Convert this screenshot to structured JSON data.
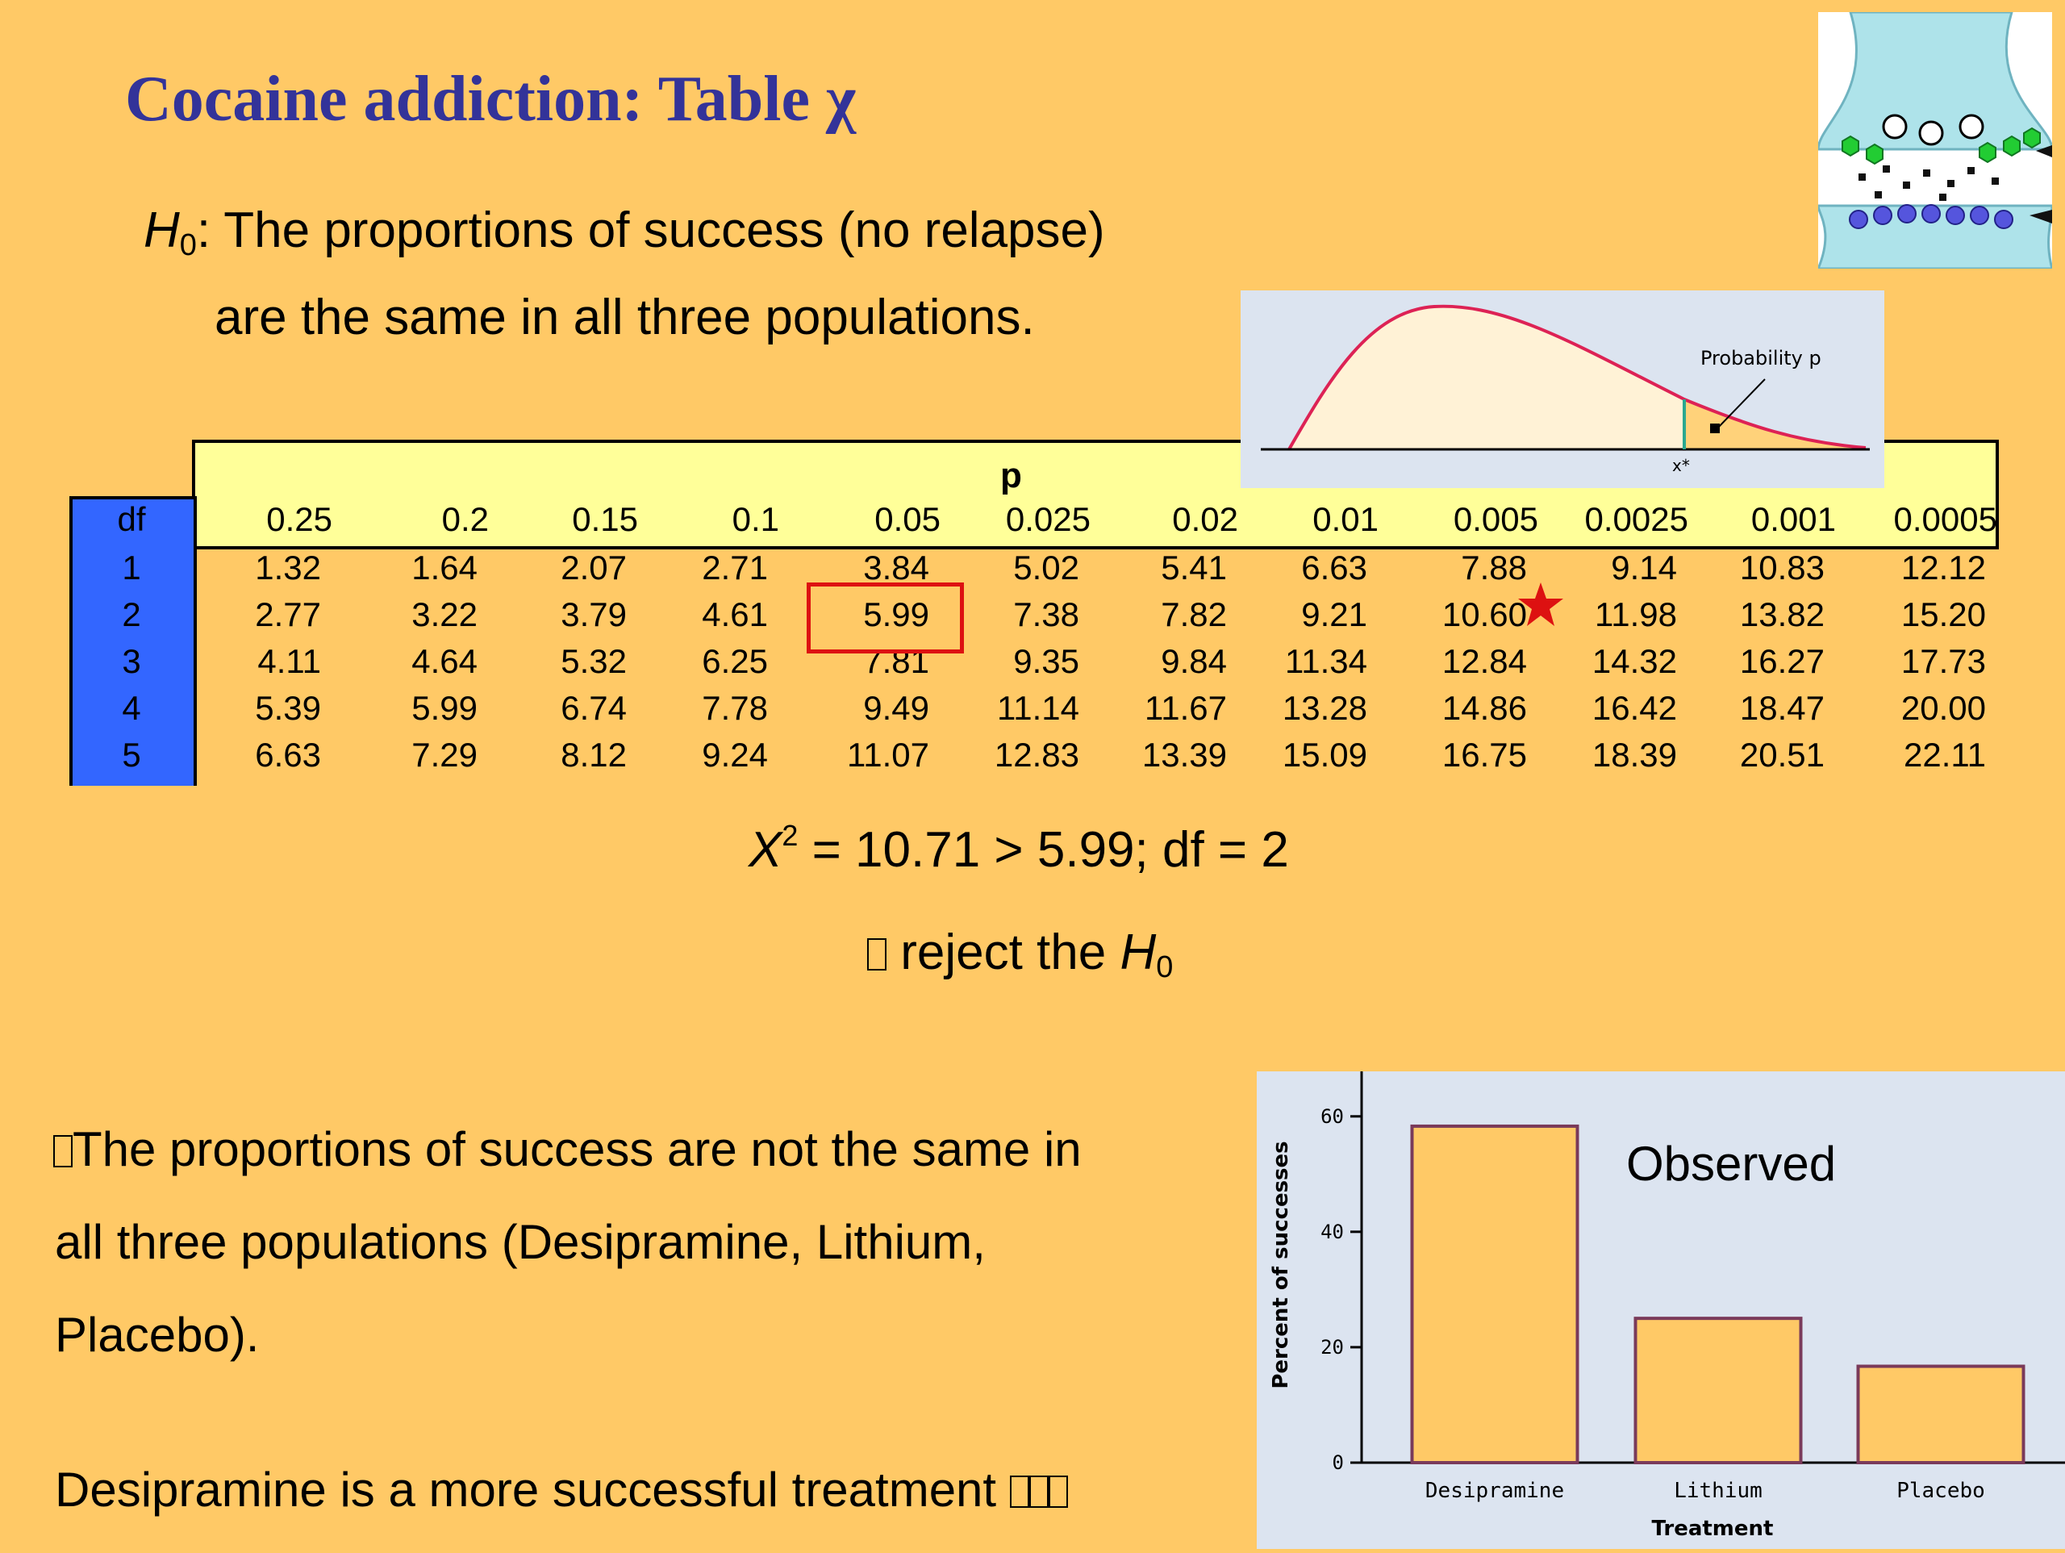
{
  "title": "Cocaine addiction: Table χ",
  "hypothesis": {
    "symbol": "H",
    "subscript": "0",
    "line1_rest": ": The proportions of success (no relapse)",
    "line2": "are the same in all three populations."
  },
  "chi_table": {
    "p_header": "p",
    "df_header": "df",
    "columns": [
      "0.25",
      "0.2",
      "0.15",
      "0.1",
      "0.05",
      "0.025",
      "0.02",
      "0.01",
      "0.005",
      "0.0025",
      "0.001",
      "0.0005"
    ],
    "rows": [
      {
        "df": "1",
        "values": [
          "1.32",
          "1.64",
          "2.07",
          "2.71",
          "3.84",
          "5.02",
          "5.41",
          "6.63",
          "7.88",
          "9.14",
          "10.83",
          "12.12"
        ]
      },
      {
        "df": "2",
        "values": [
          "2.77",
          "3.22",
          "3.79",
          "4.61",
          "5.99",
          "7.38",
          "7.82",
          "9.21",
          "10.60",
          "11.98",
          "13.82",
          "15.20"
        ]
      },
      {
        "df": "3",
        "values": [
          "4.11",
          "4.64",
          "5.32",
          "6.25",
          "7.81",
          "9.35",
          "9.84",
          "11.34",
          "12.84",
          "14.32",
          "16.27",
          "17.73"
        ]
      },
      {
        "df": "4",
        "values": [
          "5.39",
          "5.99",
          "6.74",
          "7.78",
          "9.49",
          "11.14",
          "11.67",
          "13.28",
          "14.86",
          "16.42",
          "18.47",
          "20.00"
        ]
      },
      {
        "df": "5",
        "values": [
          "6.63",
          "7.29",
          "8.12",
          "9.24",
          "11.07",
          "12.83",
          "13.39",
          "15.09",
          "16.75",
          "18.39",
          "20.51",
          "22.11"
        ]
      }
    ],
    "highlight": {
      "row": 1,
      "col": 4,
      "color": "#DD1111"
    },
    "star_marker": {
      "row": 1,
      "between_cols": [
        8,
        9
      ],
      "color": "#DD1111"
    }
  },
  "equation": {
    "var": "X",
    "sup": "2",
    "rest": " = 10.71 > 5.99;  df = 2"
  },
  "conclusion": {
    "text": " reject the ",
    "symbol": "H",
    "subscript": "0"
  },
  "body": {
    "line1": "The proportions of success are not the same in",
    "line2": "all three populations (Desipramine, Lithium,",
    "line3": "Placebo).",
    "line4": "Desipramine is a more successful treatment "
  },
  "distribution_inset": {
    "label": "Probability p",
    "x_label": "x*",
    "curve_color": "#DD2255",
    "fill_color": "#FFF2D6",
    "tail_color": "#FFD27A",
    "marker_color": "#2AA890"
  },
  "synapse_inset": {
    "icon": "synapse-diagram-icon",
    "colors": {
      "membrane": "#AEE3EA",
      "green": "#22CC33",
      "blue": "#5555DD"
    }
  },
  "chart_data": {
    "type": "bar",
    "categories": [
      "Desipramine",
      "Lithium",
      "Placebo"
    ],
    "values": [
      58.3,
      25.0,
      16.7
    ],
    "annotation": "Observed",
    "xlabel": "Treatment",
    "ylabel": "Percent of successes",
    "yticks": [
      0,
      20,
      40,
      60
    ],
    "ylim": [
      0,
      65
    ],
    "bar_color": "#FFC966",
    "bar_edge_color": "#7A3A5A",
    "grid": false
  }
}
